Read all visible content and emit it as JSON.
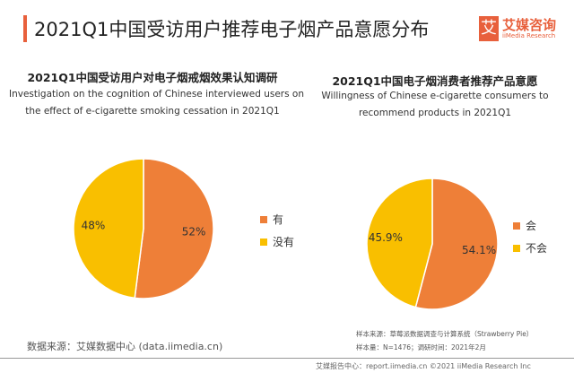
{
  "header": {
    "title": "2021Q1中国受访用户推荐电子烟产品意愿分布",
    "logo_cn": "艾媒咨询",
    "logo_en": "iiMedia Research",
    "logo_mark": "艾"
  },
  "colors": {
    "accent": "#e8603c",
    "orange": "#ee7f38",
    "yellow": "#f9bf00"
  },
  "chart_data": [
    {
      "type": "pie",
      "title": "2021Q1中国受访用户对电子烟戒烟效果认知调研",
      "subtitle_lines": [
        "Investigation on the cognition of Chinese interviewed users on",
        "the effect of e-cigarette smoking cessation in 2021Q1"
      ],
      "categories": [
        "有",
        "没有"
      ],
      "values": [
        52,
        48
      ],
      "labels": [
        "52%",
        "48%"
      ],
      "legend": "right"
    },
    {
      "type": "pie",
      "title": "2021Q1中国电子烟消费者推荐产品意愿",
      "subtitle_lines": [
        "Willingness of Chinese e-cigarette consumers to",
        "recommend products in 2021Q1"
      ],
      "categories": [
        "会",
        "不会"
      ],
      "values": [
        54.1,
        45.9
      ],
      "labels": [
        "54.1%",
        "45.9%"
      ],
      "legend": "right"
    }
  ],
  "footer": {
    "source": "数据来源：艾媒数据中心 (data.iimedia.cn)",
    "sample_source": "样本来源：草莓派数据调查与计算系统（Strawberry Pie）",
    "sample_size": "样本量：N=1476；调研时间：2021年2月",
    "report": "艾媒报告中心：report.iimedia.cn  ©2021  iiMedia Research Inc"
  }
}
